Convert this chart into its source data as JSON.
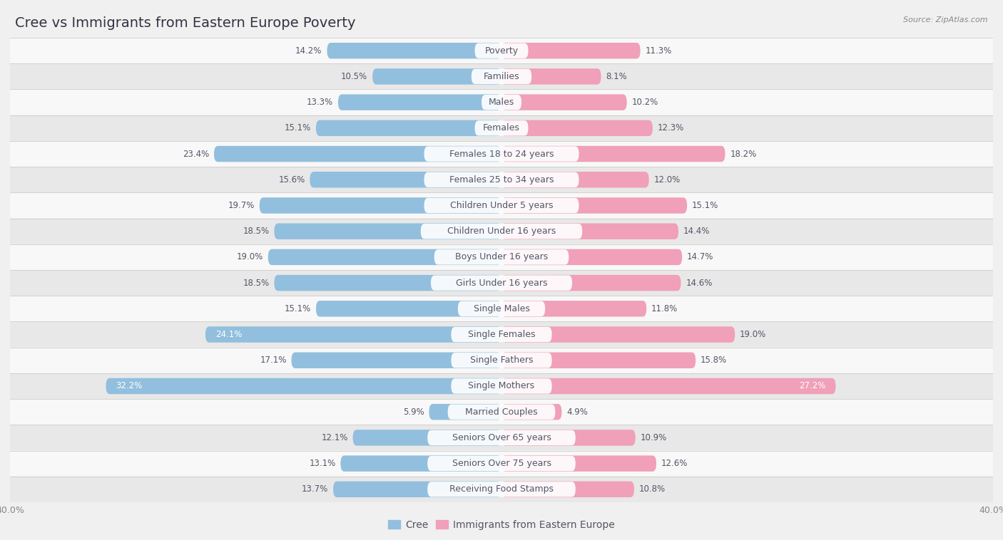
{
  "title": "Cree vs Immigrants from Eastern Europe Poverty",
  "source": "Source: ZipAtlas.com",
  "categories": [
    "Poverty",
    "Families",
    "Males",
    "Females",
    "Females 18 to 24 years",
    "Females 25 to 34 years",
    "Children Under 5 years",
    "Children Under 16 years",
    "Boys Under 16 years",
    "Girls Under 16 years",
    "Single Males",
    "Single Females",
    "Single Fathers",
    "Single Mothers",
    "Married Couples",
    "Seniors Over 65 years",
    "Seniors Over 75 years",
    "Receiving Food Stamps"
  ],
  "cree_values": [
    14.2,
    10.5,
    13.3,
    15.1,
    23.4,
    15.6,
    19.7,
    18.5,
    19.0,
    18.5,
    15.1,
    24.1,
    17.1,
    32.2,
    5.9,
    12.1,
    13.1,
    13.7
  ],
  "immigrant_values": [
    11.3,
    8.1,
    10.2,
    12.3,
    18.2,
    12.0,
    15.1,
    14.4,
    14.7,
    14.6,
    11.8,
    19.0,
    15.8,
    27.2,
    4.9,
    10.9,
    12.6,
    10.8
  ],
  "cree_color": "#92bfdd",
  "immigrant_color": "#f0a0b8",
  "text_dark": "#555566",
  "text_white": "#ffffff",
  "xlim": 40.0,
  "background_color": "#f0f0f0",
  "row_color_even": "#e8e8e8",
  "row_color_odd": "#f8f8f8",
  "bar_height": 0.62,
  "title_fontsize": 14,
  "cat_fontsize": 9,
  "value_fontsize": 8.5,
  "legend_fontsize": 10,
  "axis_tick_fontsize": 9,
  "cree_label": "Cree",
  "immigrant_label": "Immigrants from Eastern Europe"
}
